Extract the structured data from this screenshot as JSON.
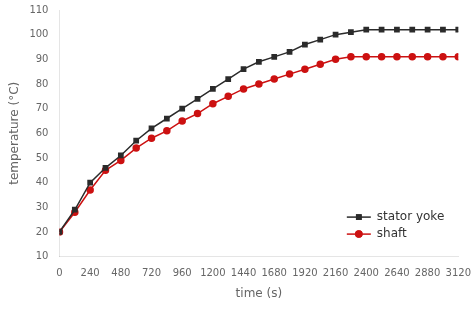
{
  "chart_data": {
    "type": "line",
    "x": [
      0,
      120,
      240,
      360,
      480,
      600,
      720,
      840,
      960,
      1080,
      1200,
      1320,
      1440,
      1560,
      1680,
      1800,
      1920,
      2040,
      2160,
      2280,
      2400,
      2520,
      2640,
      2760,
      2880,
      3000,
      3120
    ],
    "series": [
      {
        "name": "stator yoke",
        "color": "#2b2b2b",
        "marker": "square",
        "values": [
          20,
          29,
          40,
          46,
          51,
          57,
          62,
          66,
          70,
          74,
          78,
          82,
          86,
          89,
          91,
          93,
          96,
          98,
          100,
          101,
          102,
          102,
          102,
          102,
          102,
          102,
          102
        ]
      },
      {
        "name": "shaft",
        "color": "#cc1111",
        "marker": "circle",
        "values": [
          20,
          28,
          37,
          45,
          49,
          54,
          58,
          61,
          65,
          68,
          72,
          75,
          78,
          80,
          82,
          84,
          86,
          88,
          90,
          91,
          91,
          91,
          91,
          91,
          91,
          91,
          91
        ]
      }
    ],
    "xlabel": "time (s)",
    "ylabel": "temperature (°C)",
    "xlim": [
      0,
      3120
    ],
    "ylim": [
      10,
      110
    ],
    "xticks": [
      0,
      240,
      480,
      720,
      960,
      1200,
      1440,
      1680,
      1920,
      2160,
      2400,
      2640,
      2880,
      3120
    ],
    "yticks": [
      10,
      20,
      30,
      40,
      50,
      60,
      70,
      80,
      90,
      100,
      110
    ],
    "grid": false,
    "legend": "lower right"
  }
}
